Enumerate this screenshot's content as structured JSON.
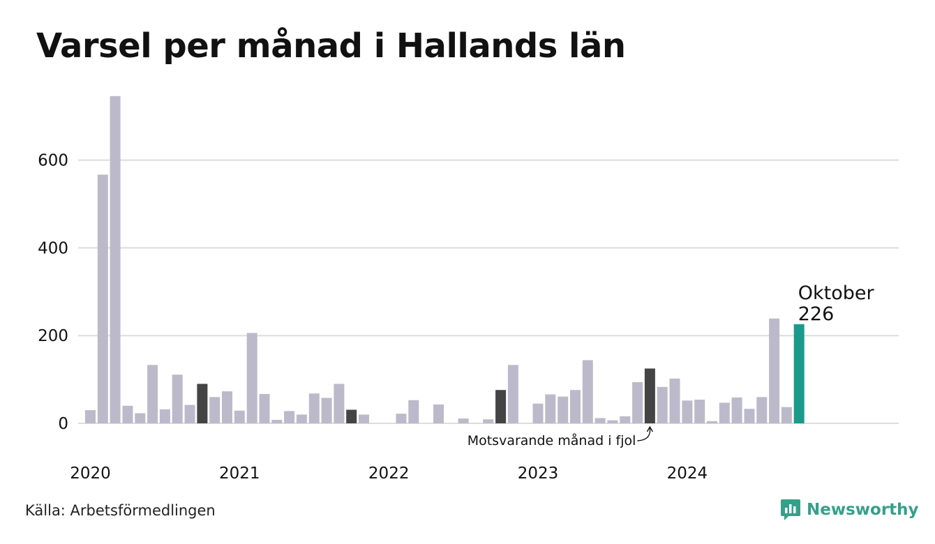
{
  "title": "Varsel per månad i Hallands län",
  "source": "Källa: Arbetsförmedlingen",
  "brand": {
    "name": "Newsworthy",
    "icon": "newsworthy-logo-icon",
    "color": "#35a08a"
  },
  "colors": {
    "default_bar": "#bcbaca",
    "same_month_bar": "#444444",
    "current_bar": "#1a9a8a",
    "grid": "#dddddd",
    "text": "#111111"
  },
  "chart_data": {
    "type": "bar",
    "title": "Varsel per månad i Hallands län",
    "xlabel": "",
    "ylabel": "",
    "ylim": [
      0,
      750
    ],
    "yticks": [
      0,
      200,
      400,
      600
    ],
    "grid": true,
    "x_year_labels": [
      "2020",
      "2021",
      "2022",
      "2023",
      "2024"
    ],
    "categories": [
      "2020-01",
      "2020-02",
      "2020-03",
      "2020-04",
      "2020-05",
      "2020-06",
      "2020-07",
      "2020-08",
      "2020-09",
      "2020-10",
      "2020-11",
      "2020-12",
      "2021-01",
      "2021-02",
      "2021-03",
      "2021-04",
      "2021-05",
      "2021-06",
      "2021-07",
      "2021-08",
      "2021-09",
      "2021-10",
      "2021-11",
      "2021-12",
      "2022-01",
      "2022-02",
      "2022-03",
      "2022-04",
      "2022-05",
      "2022-06",
      "2022-07",
      "2022-08",
      "2022-09",
      "2022-10",
      "2022-11",
      "2022-12",
      "2023-01",
      "2023-02",
      "2023-03",
      "2023-04",
      "2023-05",
      "2023-06",
      "2023-07",
      "2023-08",
      "2023-09",
      "2023-10",
      "2023-11",
      "2023-12",
      "2024-01",
      "2024-02",
      "2024-03",
      "2024-04",
      "2024-05",
      "2024-06",
      "2024-07",
      "2024-08",
      "2024-09",
      "2024-10"
    ],
    "values": [
      30,
      567,
      746,
      40,
      23,
      133,
      32,
      111,
      42,
      90,
      60,
      73,
      29,
      206,
      67,
      8,
      28,
      20,
      68,
      58,
      90,
      31,
      20,
      0,
      0,
      22,
      53,
      0,
      43,
      0,
      11,
      0,
      9,
      76,
      133,
      0,
      45,
      66,
      61,
      76,
      144,
      12,
      7,
      16,
      94,
      125,
      83,
      102,
      52,
      54,
      5,
      47,
      59,
      33,
      60,
      239,
      37,
      226
    ],
    "highlight": {
      "same_month_last_years": [
        "2020-10",
        "2021-10",
        "2022-10",
        "2023-10"
      ],
      "current": "2024-10"
    },
    "annotations": {
      "current_label": "Oktober",
      "current_value": "226",
      "last_year_label": "Motsvarande månad i fjol"
    }
  }
}
